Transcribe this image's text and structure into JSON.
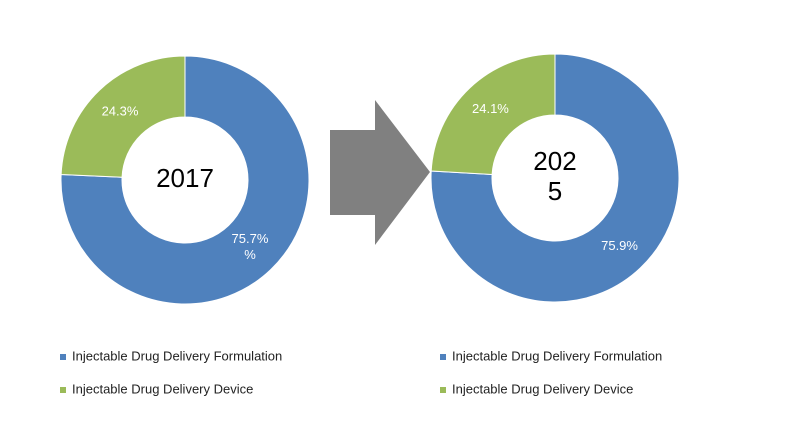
{
  "chart_data": [
    {
      "type": "pie",
      "donut": true,
      "center_label": "2017",
      "categories": [
        "Injectable Drug Delivery Formulation",
        "Injectable Drug Delivery Device"
      ],
      "values": [
        75.7,
        24.3
      ],
      "value_labels": [
        "75.7%\n%",
        "24.3%"
      ],
      "colors": [
        "#4f81bd",
        "#9bbb59"
      ]
    },
    {
      "type": "pie",
      "donut": true,
      "center_label": "202\n5",
      "categories": [
        "Injectable Drug Delivery Formulation",
        "Injectable Drug Delivery Device"
      ],
      "values": [
        75.9,
        24.1
      ],
      "value_labels": [
        "75.9%",
        "24.1%"
      ],
      "colors": [
        "#4f81bd",
        "#9bbb59"
      ]
    }
  ]
}
